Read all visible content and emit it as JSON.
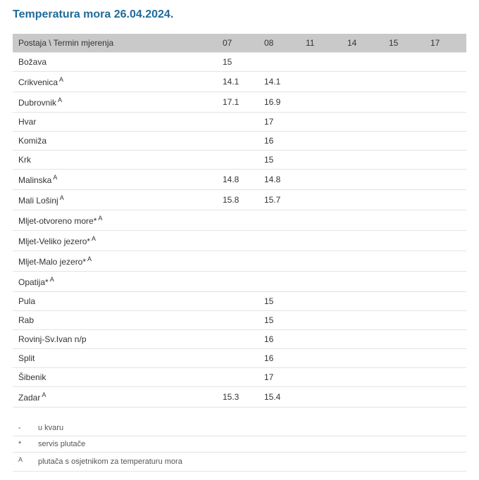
{
  "title": "Temperatura mora 26.04.2024.",
  "header": {
    "station_col": "Postaja \\ Termin mjerenja",
    "times": [
      "07",
      "08",
      "11",
      "14",
      "15",
      "17"
    ]
  },
  "rows": [
    {
      "name": "Božava",
      "sup": "",
      "vals": [
        "15",
        "",
        "",
        "",
        "",
        ""
      ]
    },
    {
      "name": "Crikvenica",
      "sup": "A",
      "vals": [
        "14.1",
        "14.1",
        "",
        "",
        "",
        ""
      ]
    },
    {
      "name": "Dubrovnik",
      "sup": "A",
      "vals": [
        "17.1",
        "16.9",
        "",
        "",
        "",
        ""
      ]
    },
    {
      "name": "Hvar",
      "sup": "",
      "vals": [
        "",
        "17",
        "",
        "",
        "",
        ""
      ]
    },
    {
      "name": "Komiža",
      "sup": "",
      "vals": [
        "",
        "16",
        "",
        "",
        "",
        ""
      ]
    },
    {
      "name": "Krk",
      "sup": "",
      "vals": [
        "",
        "15",
        "",
        "",
        "",
        ""
      ]
    },
    {
      "name": "Malinska",
      "sup": "A",
      "vals": [
        "14.8",
        "14.8",
        "",
        "",
        "",
        ""
      ]
    },
    {
      "name": "Mali Lošinj",
      "sup": "A",
      "vals": [
        "15.8",
        "15.7",
        "",
        "",
        "",
        ""
      ]
    },
    {
      "name": "Mljet-otvoreno more*",
      "sup": "A",
      "vals": [
        "",
        "",
        "",
        "",
        "",
        ""
      ]
    },
    {
      "name": "Mljet-Veliko jezero*",
      "sup": "A",
      "vals": [
        "",
        "",
        "",
        "",
        "",
        ""
      ]
    },
    {
      "name": "Mljet-Malo jezero*",
      "sup": "A",
      "vals": [
        "",
        "",
        "",
        "",
        "",
        ""
      ]
    },
    {
      "name": "Opatija*",
      "sup": "A",
      "vals": [
        "",
        "",
        "",
        "",
        "",
        ""
      ]
    },
    {
      "name": "Pula",
      "sup": "",
      "vals": [
        "",
        "15",
        "",
        "",
        "",
        ""
      ]
    },
    {
      "name": "Rab",
      "sup": "",
      "vals": [
        "",
        "15",
        "",
        "",
        "",
        ""
      ]
    },
    {
      "name": "Rovinj-Sv.Ivan n/p",
      "sup": "",
      "vals": [
        "",
        "16",
        "",
        "",
        "",
        ""
      ]
    },
    {
      "name": "Split",
      "sup": "",
      "vals": [
        "",
        "16",
        "",
        "",
        "",
        ""
      ]
    },
    {
      "name": "Šibenik",
      "sup": "",
      "vals": [
        "",
        "17",
        "",
        "",
        "",
        ""
      ]
    },
    {
      "name": "Zadar",
      "sup": "A",
      "vals": [
        "15.3",
        "15.4",
        "",
        "",
        "",
        ""
      ]
    }
  ],
  "legend": [
    {
      "sym": "-",
      "sup": false,
      "text": "u kvaru"
    },
    {
      "sym": "*",
      "sup": false,
      "text": "servis plutače"
    },
    {
      "sym": "A",
      "sup": true,
      "text": "plutača s osjetnikom za temperaturu mora"
    }
  ]
}
